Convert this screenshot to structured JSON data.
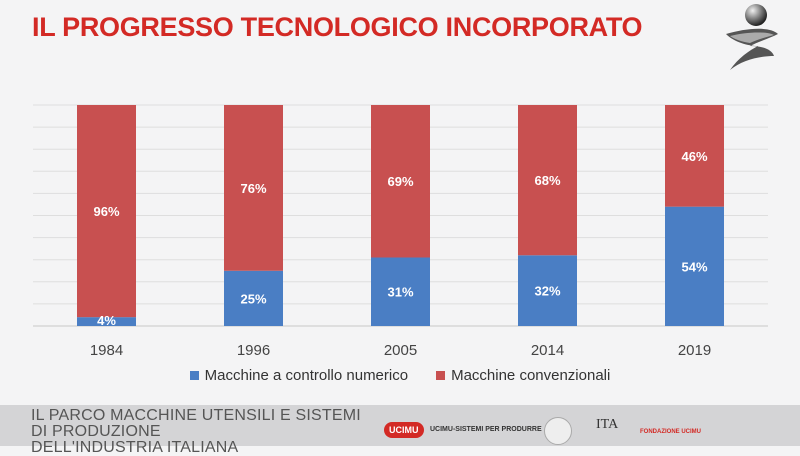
{
  "title": "IL PROGRESSO TECNOLOGICO INCORPORATO",
  "footer": {
    "line1": "IL PARCO MACCHINE UTENSILI E SISTEMI DI PRODUZIONE",
    "line2": "DELL'INDUSTRIA ITALIANA",
    "badge": "UCIMU",
    "tagline": "UCIMU-SISTEMI PER PRODURRE",
    "ita": "ITA",
    "fondazione": "FONDAZIONE UCIMU"
  },
  "colors": {
    "cnc": "#4a7ec4",
    "conventional": "#c85050",
    "title": "#d32a25"
  },
  "chart_data": {
    "type": "bar",
    "stacked": true,
    "categories": [
      "1984",
      "1996",
      "2005",
      "2014",
      "2019"
    ],
    "series": [
      {
        "name": "Macchine a controllo numerico",
        "values": [
          4,
          25,
          31,
          32,
          54
        ],
        "labels": [
          "4%",
          "25%",
          "31%",
          "32%",
          "54%"
        ]
      },
      {
        "name": "Macchine convenzionali",
        "values": [
          96,
          76,
          69,
          68,
          46
        ],
        "labels": [
          "96%",
          "76%",
          "69%",
          "68%",
          "46%"
        ]
      }
    ],
    "ylim": [
      0,
      100
    ],
    "grid": true,
    "legend": "bottom"
  }
}
